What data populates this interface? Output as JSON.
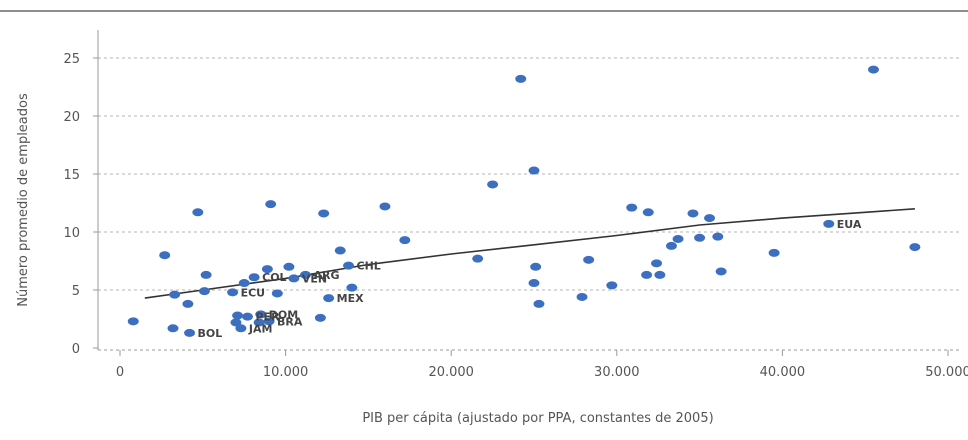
{
  "chart_data": {
    "type": "scatter",
    "xlabel": "PIB per cápita (ajustado por PPA, constantes de 2005)",
    "ylabel": "Número promedio de empleados",
    "xlim": [
      0,
      50000
    ],
    "ylim": [
      0,
      26
    ],
    "xticks": [
      0,
      10000,
      20000,
      30000,
      40000,
      50000
    ],
    "xtick_labels": [
      "0",
      "10.000",
      "20.000",
      "30.000",
      "40.000",
      "50.000"
    ],
    "yticks": [
      0,
      5,
      10,
      15,
      20,
      25
    ],
    "ytick_labels": [
      "0",
      "5",
      "10",
      "15",
      "20",
      "25"
    ],
    "grid": "horizontal dotted",
    "point_color": "#3d6fc1",
    "trend_color": "#333333",
    "points": [
      {
        "x": 800,
        "y": 2.3,
        "label": ""
      },
      {
        "x": 2700,
        "y": 8.0,
        "label": ""
      },
      {
        "x": 3200,
        "y": 1.7,
        "label": ""
      },
      {
        "x": 3300,
        "y": 4.6,
        "label": ""
      },
      {
        "x": 4100,
        "y": 3.8,
        "label": ""
      },
      {
        "x": 4200,
        "y": 1.3,
        "label": "BOL"
      },
      {
        "x": 4700,
        "y": 11.7,
        "label": ""
      },
      {
        "x": 5100,
        "y": 4.9,
        "label": ""
      },
      {
        "x": 5200,
        "y": 6.3,
        "label": ""
      },
      {
        "x": 6800,
        "y": 4.8,
        "label": "ECU"
      },
      {
        "x": 7000,
        "y": 2.2,
        "label": ""
      },
      {
        "x": 7100,
        "y": 2.8,
        "label": ""
      },
      {
        "x": 7300,
        "y": 1.7,
        "label": "JAM"
      },
      {
        "x": 7500,
        "y": 5.6,
        "label": ""
      },
      {
        "x": 7700,
        "y": 2.7,
        "label": "PER"
      },
      {
        "x": 8100,
        "y": 6.1,
        "label": "COL"
      },
      {
        "x": 8400,
        "y": 2.2,
        "label": ""
      },
      {
        "x": 8500,
        "y": 2.9,
        "label": "DOM"
      },
      {
        "x": 8900,
        "y": 6.8,
        "label": ""
      },
      {
        "x": 9000,
        "y": 2.3,
        "label": "BRA"
      },
      {
        "x": 9100,
        "y": 12.4,
        "label": ""
      },
      {
        "x": 9500,
        "y": 4.7,
        "label": ""
      },
      {
        "x": 10200,
        "y": 7.0,
        "label": ""
      },
      {
        "x": 10500,
        "y": 6.0,
        "label": "VEN"
      },
      {
        "x": 11200,
        "y": 6.3,
        "label": "ARG"
      },
      {
        "x": 12100,
        "y": 2.6,
        "label": ""
      },
      {
        "x": 12300,
        "y": 11.6,
        "label": ""
      },
      {
        "x": 12600,
        "y": 4.3,
        "label": "MEX"
      },
      {
        "x": 13300,
        "y": 8.4,
        "label": ""
      },
      {
        "x": 13800,
        "y": 7.1,
        "label": "CHL"
      },
      {
        "x": 14000,
        "y": 5.2,
        "label": ""
      },
      {
        "x": 16000,
        "y": 12.2,
        "label": ""
      },
      {
        "x": 17200,
        "y": 9.3,
        "label": ""
      },
      {
        "x": 21600,
        "y": 7.7,
        "label": ""
      },
      {
        "x": 22500,
        "y": 14.1,
        "label": ""
      },
      {
        "x": 24200,
        "y": 23.2,
        "label": ""
      },
      {
        "x": 25000,
        "y": 15.3,
        "label": ""
      },
      {
        "x": 25000,
        "y": 5.6,
        "label": ""
      },
      {
        "x": 25100,
        "y": 7.0,
        "label": ""
      },
      {
        "x": 25300,
        "y": 3.8,
        "label": ""
      },
      {
        "x": 27900,
        "y": 4.4,
        "label": ""
      },
      {
        "x": 28300,
        "y": 7.6,
        "label": ""
      },
      {
        "x": 29700,
        "y": 5.4,
        "label": ""
      },
      {
        "x": 30900,
        "y": 12.1,
        "label": ""
      },
      {
        "x": 31800,
        "y": 6.3,
        "label": ""
      },
      {
        "x": 31900,
        "y": 11.7,
        "label": ""
      },
      {
        "x": 32400,
        "y": 7.3,
        "label": ""
      },
      {
        "x": 32600,
        "y": 6.3,
        "label": ""
      },
      {
        "x": 33300,
        "y": 8.8,
        "label": ""
      },
      {
        "x": 33700,
        "y": 9.4,
        "label": ""
      },
      {
        "x": 34600,
        "y": 11.6,
        "label": ""
      },
      {
        "x": 35000,
        "y": 9.5,
        "label": ""
      },
      {
        "x": 35600,
        "y": 11.2,
        "label": ""
      },
      {
        "x": 36100,
        "y": 9.6,
        "label": ""
      },
      {
        "x": 36300,
        "y": 6.6,
        "label": ""
      },
      {
        "x": 39500,
        "y": 8.2,
        "label": ""
      },
      {
        "x": 42800,
        "y": 10.7,
        "label": "EUA"
      },
      {
        "x": 45500,
        "y": 24.0,
        "label": ""
      },
      {
        "x": 48000,
        "y": 8.7,
        "label": ""
      }
    ],
    "trendline": [
      {
        "x": 1500,
        "y": 4.3
      },
      {
        "x": 5000,
        "y": 5.0
      },
      {
        "x": 10000,
        "y": 6.0
      },
      {
        "x": 15000,
        "y": 7.2
      },
      {
        "x": 20000,
        "y": 8.1
      },
      {
        "x": 25000,
        "y": 8.9
      },
      {
        "x": 30000,
        "y": 9.7
      },
      {
        "x": 35000,
        "y": 10.6
      },
      {
        "x": 40000,
        "y": 11.2
      },
      {
        "x": 45000,
        "y": 11.7
      },
      {
        "x": 48000,
        "y": 12.0
      }
    ]
  }
}
